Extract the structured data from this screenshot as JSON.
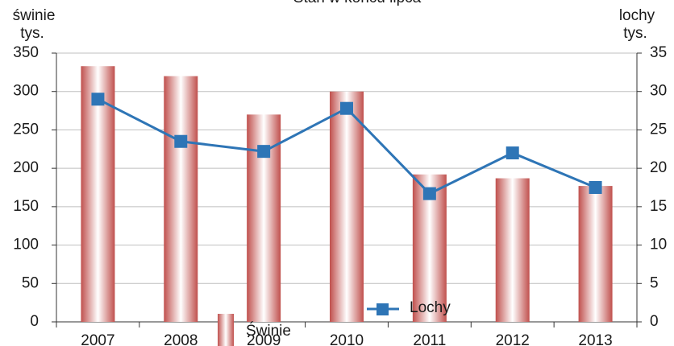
{
  "chart_data": {
    "type": "bar",
    "title": "Stan w końcu lipca",
    "y_label_lines": [
      "świnie",
      "tys."
    ],
    "y2_label_lines": [
      "lochy",
      "tys."
    ],
    "categories": [
      "2007",
      "2008",
      "2009",
      "2010",
      "2011",
      "2012",
      "2013"
    ],
    "series": [
      {
        "name": "Świnie",
        "type": "bar",
        "color": "#c0504d",
        "values": [
          333,
          320,
          270,
          300,
          192,
          187,
          177
        ]
      },
      {
        "name": "Lochy",
        "type": "line",
        "axis": "y2",
        "color": "#2e75b6",
        "values": [
          29,
          23.5,
          22.2,
          27.8,
          16.7,
          22,
          17.5
        ]
      }
    ],
    "ylim": [
      0,
      350
    ],
    "yticks": [
      0,
      50,
      100,
      150,
      200,
      250,
      300,
      350
    ],
    "y2lim": [
      0,
      35
    ],
    "y2ticks": [
      0,
      5,
      10,
      15,
      20,
      25,
      30,
      35
    ],
    "grid": true,
    "legend": "bottom"
  }
}
